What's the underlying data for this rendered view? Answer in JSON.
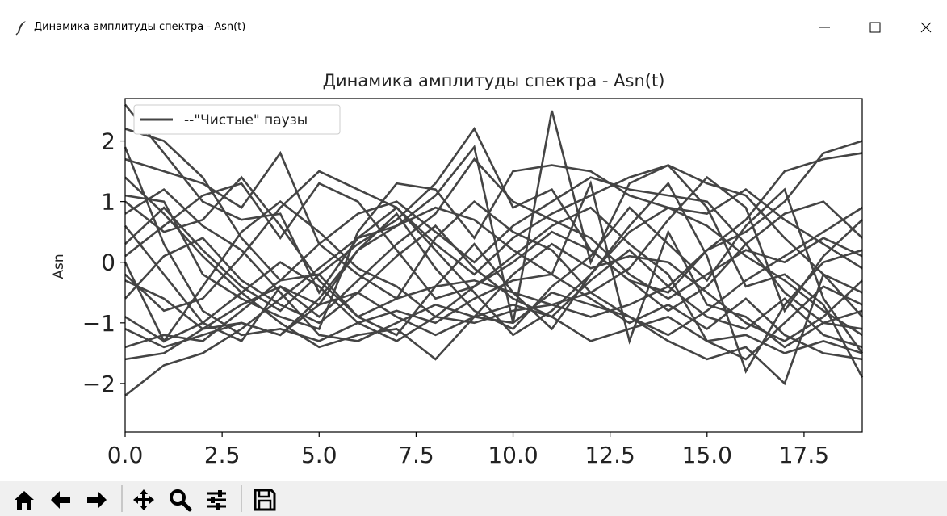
{
  "window": {
    "title": "Динамика амплитуды спектра - Asn(t)",
    "controls": [
      "minimize",
      "maximize",
      "close"
    ]
  },
  "toolbar": {
    "buttons": [
      "home-icon",
      "back-arrow-icon",
      "forward-arrow-icon",
      "pan-icon",
      "zoom-icon",
      "configure-subplots-icon",
      "save-icon"
    ]
  },
  "chart_data": {
    "type": "line",
    "title": "Динамика амплитуды спектра - Asn(t)",
    "xlabel": "",
    "ylabel": "Asn",
    "xlim": [
      0,
      19
    ],
    "ylim": [
      -2.8,
      2.7
    ],
    "x_ticks": [
      "0.0",
      "2.5",
      "5.0",
      "7.5",
      "10.0",
      "12.5",
      "15.0",
      "17.5"
    ],
    "y_ticks": [
      "2",
      "1",
      "0",
      "−1",
      "−2"
    ],
    "legend": {
      "position": "top-left",
      "label": "--\"Чистые\" паузы"
    },
    "line_color": "#444444",
    "grid": false,
    "x": [
      0,
      1,
      2,
      3,
      4,
      5,
      6,
      7,
      8,
      9,
      10,
      11,
      12,
      13,
      14,
      15,
      16,
      17,
      18,
      19
    ],
    "series": [
      {
        "values": [
          2.6,
          1.8,
          1.0,
          0.7,
          0.8,
          -0.5,
          0.4,
          0.6,
          1.1,
          1.9,
          -1.0,
          2.5,
          0.0,
          1.3,
          1.6,
          0.9,
          -0.4,
          -0.2,
          -0.7,
          -1.9
        ]
      },
      {
        "values": [
          2.2,
          2.0,
          1.4,
          0.4,
          -0.3,
          -0.2,
          0.3,
          0.7,
          1.3,
          2.2,
          0.9,
          1.2,
          0.2,
          -0.3,
          -0.5,
          0.2,
          0.5,
          1.0,
          1.8,
          2.0
        ]
      },
      {
        "values": [
          1.9,
          0.3,
          -0.8,
          -1.2,
          -1.1,
          -1.3,
          -1.0,
          -0.8,
          -1.0,
          -0.6,
          -0.3,
          -0.2,
          1.3,
          -1.3,
          0.5,
          -0.7,
          -0.9,
          -1.4,
          -1.0,
          -1.1
        ]
      },
      {
        "values": [
          1.7,
          1.5,
          1.3,
          0.9,
          1.8,
          0.3,
          -0.2,
          -0.6,
          -0.4,
          -0.3,
          -0.5,
          -0.7,
          -0.5,
          -0.1,
          0.7,
          1.4,
          0.9,
          -0.8,
          0.1,
          0.7
        ]
      },
      {
        "values": [
          1.1,
          1.0,
          -0.2,
          -0.6,
          -0.9,
          -1.1,
          0.5,
          1.3,
          1.2,
          0.4,
          1.5,
          1.6,
          1.5,
          1.1,
          0.9,
          0.8,
          1.2,
          0.7,
          0.3,
          -0.1
        ]
      },
      {
        "values": [
          1.0,
          0.5,
          0.7,
          1.4,
          0.6,
          -0.3,
          -0.9,
          -1.2,
          -0.4,
          0.3,
          -0.5,
          -1.1,
          -0.2,
          0.6,
          1.3,
          0.1,
          -1.8,
          -0.7,
          0.0,
          0.2
        ]
      },
      {
        "values": [
          0.6,
          -0.2,
          -1.0,
          -1.3,
          -0.4,
          -0.7,
          0.2,
          0.8,
          -0.1,
          -0.8,
          -1.1,
          -0.4,
          0.1,
          0.9,
          0.3,
          -0.3,
          0.6,
          1.2,
          -0.6,
          -1.5
        ]
      },
      {
        "values": [
          0.3,
          0.9,
          0.2,
          -0.4,
          -0.8,
          -0.2,
          -0.9,
          -0.6,
          0.4,
          1.0,
          0.5,
          0.2,
          -0.5,
          -0.9,
          -1.2,
          -0.8,
          -0.3,
          0.1,
          0.5,
          0.9
        ]
      },
      {
        "values": [
          0.1,
          0.6,
          1.1,
          1.3,
          0.4,
          1.3,
          1.0,
          0.2,
          -0.6,
          -0.4,
          0.1,
          0.6,
          0.9,
          0.3,
          -0.2,
          -1.3,
          -1.6,
          -1.0,
          -0.4,
          -0.7
        ]
      },
      {
        "values": [
          -0.2,
          -0.8,
          -0.6,
          0.1,
          0.9,
          1.5,
          1.2,
          0.9,
          0.3,
          -0.2,
          0.4,
          0.8,
          1.1,
          1.4,
          1.6,
          1.3,
          1.1,
          0.4,
          -0.2,
          -0.5
        ]
      },
      {
        "values": [
          -0.6,
          0.1,
          0.4,
          -0.3,
          -0.7,
          -1.0,
          -0.5,
          0.1,
          0.6,
          -0.1,
          -0.6,
          -0.9,
          -0.3,
          0.2,
          -0.4,
          -0.9,
          -1.1,
          -0.6,
          -1.2,
          -1.4
        ]
      },
      {
        "values": [
          -0.9,
          -1.3,
          -1.0,
          -0.5,
          0.0,
          -0.4,
          -1.0,
          -1.3,
          -0.9,
          -0.4,
          0.0,
          0.5,
          0.2,
          -0.3,
          -0.8,
          -0.4,
          0.3,
          0.8,
          1.0,
          0.4
        ]
      },
      {
        "values": [
          -1.1,
          -1.4,
          -1.2,
          -1.0,
          -1.2,
          -0.6,
          0.2,
          0.6,
          0.9,
          0.7,
          0.2,
          -0.2,
          -0.6,
          -1.0,
          -0.7,
          -1.1,
          -0.6,
          -1.2,
          -1.5,
          -1.6
        ]
      },
      {
        "values": [
          -1.4,
          -1.2,
          -1.3,
          -0.8,
          -0.3,
          0.3,
          0.8,
          1.0,
          0.5,
          0.0,
          0.6,
          1.0,
          1.4,
          1.2,
          1.1,
          1.0,
          0.3,
          -0.5,
          -1.0,
          -0.8
        ]
      },
      {
        "values": [
          -1.6,
          -1.5,
          -1.1,
          -1.0,
          -1.2,
          -0.7,
          -0.5,
          -0.9,
          -1.2,
          -0.9,
          -0.7,
          -0.9,
          -1.3,
          -1.1,
          -0.9,
          -1.3,
          -1.2,
          -1.5,
          -1.3,
          -1.5
        ]
      },
      {
        "values": [
          -2.2,
          -1.7,
          -1.5,
          -1.1,
          -0.6,
          -0.1,
          0.4,
          0.9,
          0.2,
          -0.5,
          -1.2,
          -0.8,
          -0.2,
          0.5,
          0.9,
          0.6,
          0.1,
          -0.3,
          -0.8,
          -1.2
        ]
      },
      {
        "values": [
          0.8,
          1.2,
          0.6,
          0.2,
          -0.5,
          -1.2,
          -1.3,
          -1.0,
          -0.7,
          -0.9,
          -1.0,
          -0.5,
          -0.7,
          -0.9,
          -1.3,
          -1.6,
          -1.4,
          -2.0,
          -0.2,
          -0.9
        ]
      },
      {
        "values": [
          -0.3,
          -0.6,
          -1.1,
          -0.7,
          -0.4,
          -0.9,
          -0.3,
          0.3,
          0.8,
          1.7,
          1.0,
          0.7,
          0.4,
          -0.2,
          -0.6,
          -0.2,
          0.2,
          0.0,
          0.4,
          0.1
        ]
      },
      {
        "values": [
          1.4,
          0.8,
          0.1,
          -0.5,
          -1.0,
          -1.4,
          -1.2,
          -1.1,
          -1.6,
          -0.9,
          -0.2,
          0.3,
          -0.1,
          0.1,
          0.0,
          -0.5,
          -1.0,
          -1.3,
          -0.9,
          -0.3
        ]
      },
      {
        "values": [
          0.0,
          -1.3,
          -0.4,
          0.5,
          1.0,
          0.5,
          -0.1,
          -0.4,
          -0.9,
          -1.0,
          -0.8,
          -0.7,
          -0.9,
          -0.7,
          -0.4,
          0.2,
          0.7,
          1.5,
          1.7,
          1.8
        ]
      }
    ]
  }
}
